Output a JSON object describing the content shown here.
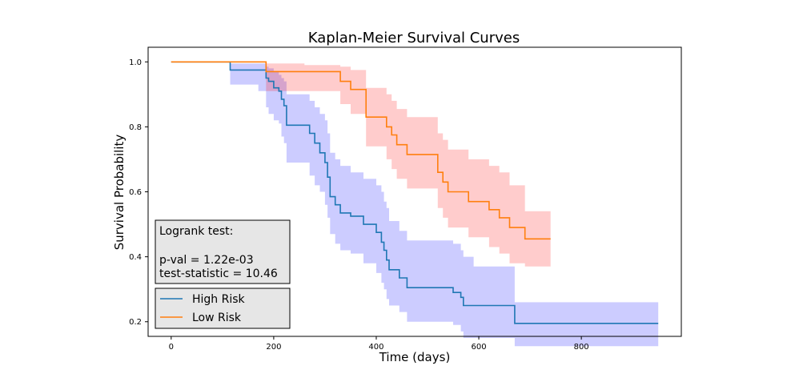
{
  "chart_data": {
    "type": "line",
    "step": "post",
    "title": "Kaplan-Meier Survival Curves",
    "xlabel": "Time (days)",
    "ylabel": "Survival Probability",
    "xlim": [
      -45,
      995
    ],
    "ylim": [
      0.155,
      1.045
    ],
    "xticks": [
      0,
      200,
      400,
      600,
      800
    ],
    "yticks": [
      0.2,
      0.4,
      0.6,
      0.8,
      1.0
    ],
    "xtick_labels": [
      "0",
      "200",
      "400",
      "600",
      "800"
    ],
    "ytick_labels": [
      "0.2",
      "0.4",
      "0.6",
      "0.8",
      "1.0"
    ],
    "grid": false,
    "legend_position": "bottom-left",
    "annotation": {
      "title": "Logrank test:",
      "pval": "p-val = 1.22e-03",
      "statistic": "test-statistic = 10.46"
    },
    "series": [
      {
        "name": "High Risk",
        "color": "#1f77b4",
        "ci_color": "#0000ff",
        "x": [
          0,
          115,
          170,
          185,
          190,
          200,
          210,
          215,
          220,
          225,
          270,
          280,
          290,
          300,
          305,
          310,
          320,
          330,
          350,
          375,
          400,
          410,
          415,
          420,
          425,
          445,
          460,
          550,
          565,
          570,
          590,
          660,
          670,
          950
        ],
        "y": [
          1.0,
          0.975,
          0.975,
          0.95,
          0.94,
          0.92,
          0.91,
          0.885,
          0.865,
          0.805,
          0.78,
          0.75,
          0.72,
          0.69,
          0.645,
          0.585,
          0.56,
          0.535,
          0.525,
          0.5,
          0.475,
          0.445,
          0.42,
          0.39,
          0.36,
          0.335,
          0.305,
          0.29,
          0.275,
          0.25,
          0.25,
          0.25,
          0.195,
          0.195
        ],
        "ci_lower": [
          1.0,
          0.93,
          0.91,
          0.86,
          0.84,
          0.82,
          0.81,
          0.77,
          0.75,
          0.69,
          0.65,
          0.62,
          0.6,
          0.56,
          0.52,
          0.47,
          0.44,
          0.42,
          0.41,
          0.38,
          0.35,
          0.32,
          0.3,
          0.27,
          0.25,
          0.23,
          0.2,
          0.19,
          0.17,
          0.15,
          0.15,
          0.15,
          0.125,
          0.125
        ],
        "ci_upper": [
          1.0,
          0.995,
          0.995,
          0.985,
          0.98,
          0.97,
          0.96,
          0.95,
          0.94,
          0.9,
          0.88,
          0.86,
          0.84,
          0.82,
          0.78,
          0.72,
          0.7,
          0.68,
          0.66,
          0.64,
          0.62,
          0.6,
          0.57,
          0.55,
          0.51,
          0.48,
          0.45,
          0.44,
          0.42,
          0.4,
          0.37,
          0.37,
          0.26,
          0.26
        ]
      },
      {
        "name": "Low Risk",
        "color": "#ff7f0e",
        "ci_color": "#ff0000",
        "x": [
          0,
          170,
          185,
          260,
          330,
          350,
          380,
          420,
          430,
          440,
          460,
          480,
          520,
          520,
          530,
          540,
          545,
          580,
          620,
          640,
          660,
          690,
          740
        ],
        "y": [
          1.0,
          1.0,
          0.97,
          0.97,
          0.94,
          0.915,
          0.83,
          0.8,
          0.775,
          0.745,
          0.715,
          0.715,
          0.685,
          0.66,
          0.63,
          0.6,
          0.6,
          0.57,
          0.545,
          0.52,
          0.49,
          0.455,
          0.455
        ],
        "ci_lower": [
          1.0,
          1.0,
          0.91,
          0.91,
          0.87,
          0.84,
          0.74,
          0.7,
          0.67,
          0.64,
          0.61,
          0.61,
          0.58,
          0.55,
          0.52,
          0.49,
          0.49,
          0.46,
          0.43,
          0.41,
          0.38,
          0.37,
          0.37
        ],
        "ci_upper": [
          1.0,
          1.0,
          0.995,
          0.99,
          0.985,
          0.975,
          0.92,
          0.9,
          0.88,
          0.855,
          0.83,
          0.83,
          0.8,
          0.78,
          0.76,
          0.73,
          0.73,
          0.7,
          0.68,
          0.66,
          0.62,
          0.54,
          0.54
        ]
      }
    ]
  }
}
